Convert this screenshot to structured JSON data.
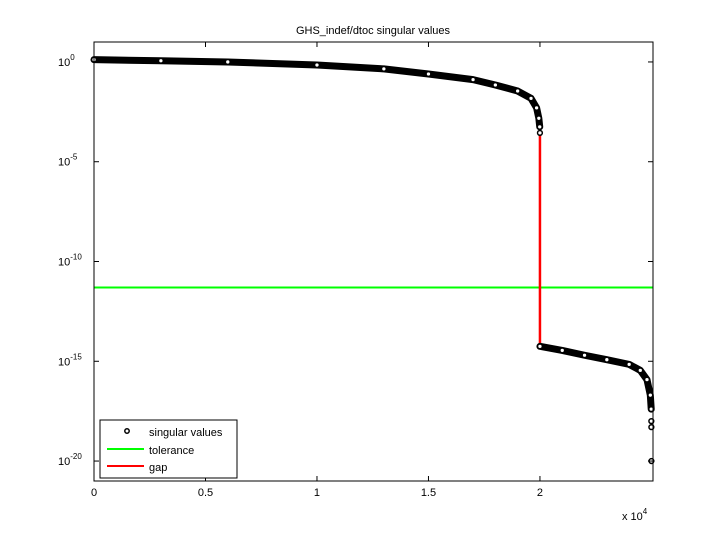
{
  "chart_data": {
    "type": "scatter",
    "title": "GHS_indef/dtoc singular values",
    "xlabel": "",
    "ylabel": "",
    "x_multiplier_label": "x 10",
    "x_multiplier_exp": "4",
    "xlim": [
      0,
      25070
    ],
    "ylim": [
      1e-21,
      10
    ],
    "yscale": "log",
    "grid": false,
    "legend_position": "bottom-left",
    "x_ticks": [
      0,
      5000,
      10000,
      15000,
      20000
    ],
    "x_tick_labels": [
      "0",
      "0.5",
      "1",
      "1.5",
      "2"
    ],
    "y_ticks": [
      1,
      1e-05,
      1e-10,
      1e-15,
      1e-20
    ],
    "y_tick_labels": [
      {
        "base": "10",
        "exp": "0"
      },
      {
        "base": "10",
        "exp": "-5"
      },
      {
        "base": "10",
        "exp": "-10"
      },
      {
        "base": "10",
        "exp": "-15"
      },
      {
        "base": "10",
        "exp": "-20"
      }
    ],
    "series": [
      {
        "name": "singular values",
        "color": "#000000",
        "marker": "circle",
        "points": [
          [
            0,
            1.3
          ],
          [
            3000,
            1.15
          ],
          [
            6000,
            1.0
          ],
          [
            10000,
            0.7
          ],
          [
            13000,
            0.45
          ],
          [
            15000,
            0.25
          ],
          [
            17000,
            0.13
          ],
          [
            18000,
            0.07
          ],
          [
            19000,
            0.035
          ],
          [
            19600,
            0.015
          ],
          [
            19850,
            0.005
          ],
          [
            19950,
            0.0015
          ],
          [
            19990,
            0.00056
          ],
          [
            19999,
            0.00028
          ],
          [
            20000,
            5.6e-15
          ],
          [
            21000,
            3.5e-15
          ],
          [
            22000,
            2e-15
          ],
          [
            23000,
            1.2e-15
          ],
          [
            24000,
            7e-16
          ],
          [
            24500,
            3.5e-16
          ],
          [
            24800,
            1.2e-16
          ],
          [
            24950,
            2e-17
          ],
          [
            24990,
            4e-18
          ],
          [
            24995,
            1e-18
          ],
          [
            24997,
            5e-19
          ],
          [
            24999,
            1e-20
          ]
        ]
      },
      {
        "name": "tolerance",
        "color": "#00ff00",
        "type": "hline",
        "y": 5e-12
      },
      {
        "name": "gap",
        "color": "#ff0000",
        "type": "vline",
        "x": 20000,
        "y_from": 0.00028,
        "y_to": 5.6e-15
      }
    ]
  }
}
